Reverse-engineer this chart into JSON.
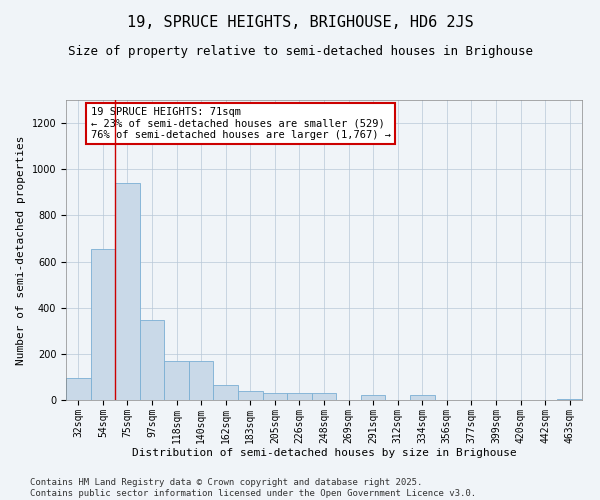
{
  "title": "19, SPRUCE HEIGHTS, BRIGHOUSE, HD6 2JS",
  "subtitle": "Size of property relative to semi-detached houses in Brighouse",
  "xlabel": "Distribution of semi-detached houses by size in Brighouse",
  "ylabel": "Number of semi-detached properties",
  "bar_color": "#c9d9e8",
  "bar_edge_color": "#7bafd4",
  "background_color": "#f0f4f8",
  "grid_color": "#b8c8d8",
  "categories": [
    "32sqm",
    "54sqm",
    "75sqm",
    "97sqm",
    "118sqm",
    "140sqm",
    "162sqm",
    "183sqm",
    "205sqm",
    "226sqm",
    "248sqm",
    "269sqm",
    "291sqm",
    "312sqm",
    "334sqm",
    "356sqm",
    "377sqm",
    "399sqm",
    "420sqm",
    "442sqm",
    "463sqm"
  ],
  "values": [
    95,
    655,
    940,
    345,
    170,
    170,
    65,
    40,
    30,
    30,
    30,
    0,
    20,
    0,
    20,
    0,
    0,
    0,
    0,
    0,
    5
  ],
  "ylim": [
    0,
    1300
  ],
  "yticks": [
    0,
    200,
    400,
    600,
    800,
    1000,
    1200
  ],
  "property_line_bin": 1.5,
  "annotation_text": "19 SPRUCE HEIGHTS: 71sqm\n← 23% of semi-detached houses are smaller (529)\n76% of semi-detached houses are larger (1,767) →",
  "annotation_box_color": "#ffffff",
  "annotation_box_edge": "#cc0000",
  "footer_text": "Contains HM Land Registry data © Crown copyright and database right 2025.\nContains public sector information licensed under the Open Government Licence v3.0.",
  "title_fontsize": 11,
  "subtitle_fontsize": 9,
  "label_fontsize": 8,
  "tick_fontsize": 7,
  "annotation_fontsize": 7.5,
  "footer_fontsize": 6.5
}
